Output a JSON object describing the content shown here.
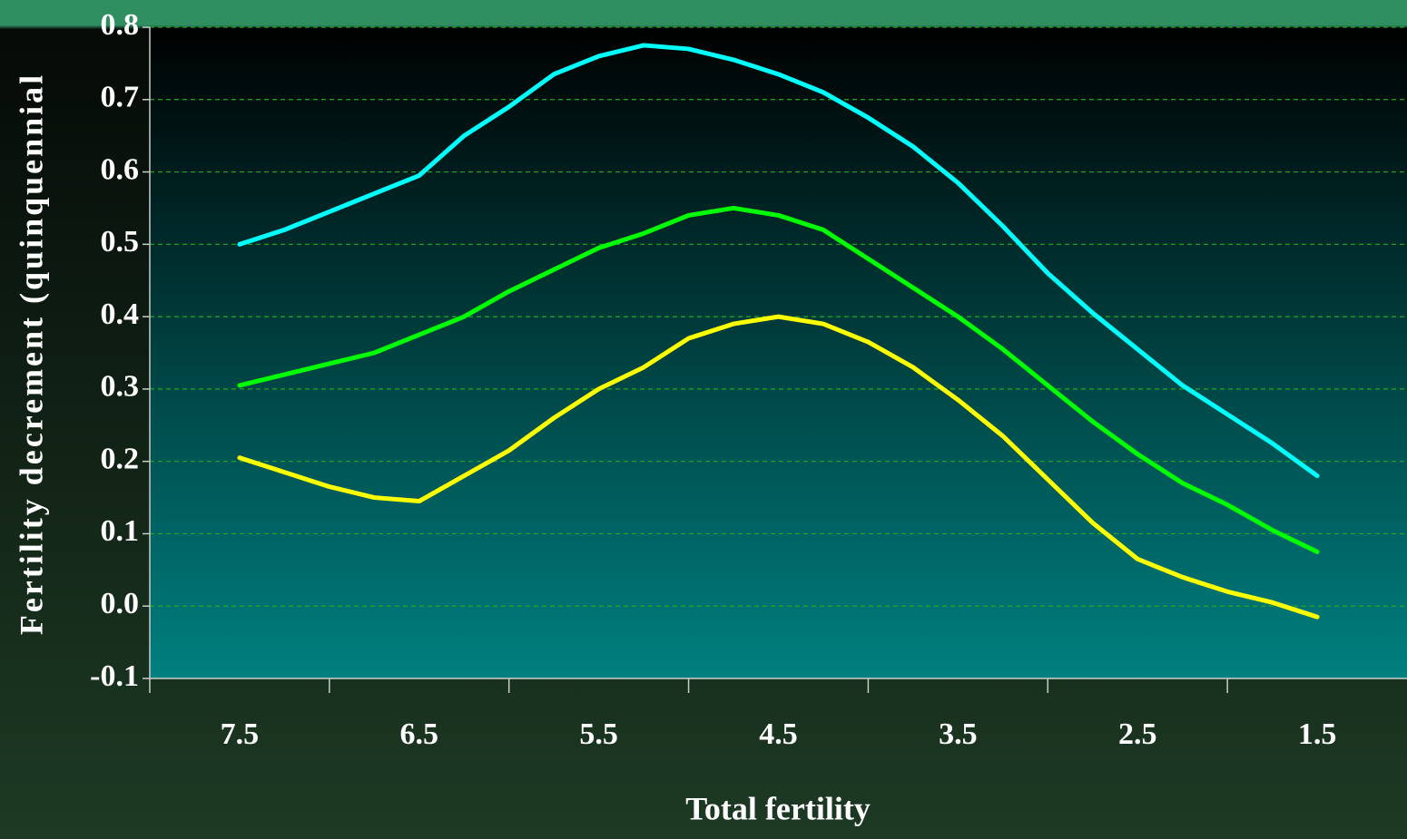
{
  "chart_data": {
    "type": "line",
    "x_label": "Total fertility",
    "y_label": "Fertility decrement (quinquennial",
    "x": [
      7.5,
      7.25,
      7.0,
      6.75,
      6.5,
      6.25,
      6.0,
      5.75,
      5.5,
      5.25,
      5.0,
      4.75,
      4.5,
      4.25,
      4.0,
      3.75,
      3.5,
      3.25,
      3.0,
      2.75,
      2.5,
      2.25,
      2.0,
      1.75,
      1.5
    ],
    "series": [
      {
        "color": "#00ffff",
        "values": [
          0.5,
          0.52,
          0.545,
          0.57,
          0.595,
          0.65,
          0.69,
          0.735,
          0.76,
          0.775,
          0.77,
          0.755,
          0.735,
          0.71,
          0.675,
          0.635,
          0.585,
          0.525,
          0.46,
          0.405,
          0.355,
          0.305,
          0.265,
          0.225,
          0.18
        ]
      },
      {
        "color": "#00ff00",
        "values": [
          0.305,
          0.32,
          0.335,
          0.35,
          0.375,
          0.4,
          0.435,
          0.465,
          0.495,
          0.515,
          0.54,
          0.55,
          0.54,
          0.52,
          0.48,
          0.44,
          0.4,
          0.355,
          0.305,
          0.255,
          0.21,
          0.17,
          0.14,
          0.105,
          0.075
        ]
      },
      {
        "color": "#ffff00",
        "values": [
          0.205,
          0.185,
          0.165,
          0.15,
          0.145,
          0.18,
          0.215,
          0.26,
          0.3,
          0.33,
          0.37,
          0.39,
          0.4,
          0.39,
          0.365,
          0.33,
          0.285,
          0.235,
          0.175,
          0.115,
          0.065,
          0.04,
          0.02,
          0.005,
          -0.015
        ]
      }
    ],
    "xlim": [
      8,
      1
    ],
    "xticks": [
      7.5,
      6.5,
      5.5,
      4.5,
      3.5,
      2.5,
      1.5
    ],
    "ylim": [
      -0.1,
      0.8
    ],
    "yticks": [
      -0.1,
      {
        "value": 0,
        "label": "0.0"
      },
      0.1,
      0.2,
      0.3,
      0.4,
      0.5,
      0.6,
      0.7,
      0.8
    ],
    "grid": true
  }
}
